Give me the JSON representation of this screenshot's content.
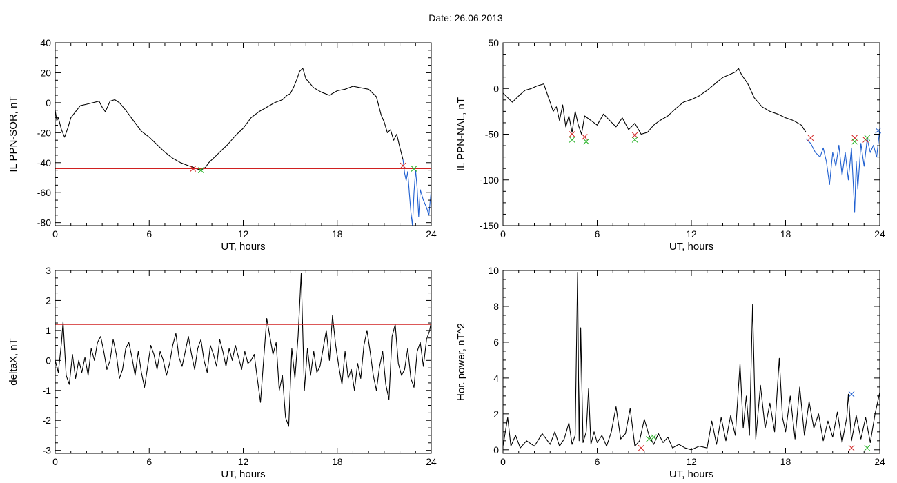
{
  "page": {
    "title": "Date:  26.06.2013"
  },
  "chart_data": [
    {
      "id": "sor",
      "type": "line",
      "xlabel": "UT, hours",
      "ylabel": "IL PPN-SOR, nT",
      "xlim": [
        0,
        24
      ],
      "ylim": [
        -82,
        40
      ],
      "xticks": [
        0,
        6,
        12,
        18,
        24
      ],
      "yticks": [
        -80,
        -60,
        -40,
        -20,
        0,
        20,
        40
      ],
      "threshold": -44,
      "series": [
        {
          "role": "main",
          "color": "#000000",
          "x": [
            0,
            0.1,
            0.2,
            0.4,
            0.6,
            0.8,
            1.0,
            1.3,
            1.6,
            2.0,
            2.4,
            2.8,
            3.0,
            3.2,
            3.5,
            3.8,
            4.1,
            4.5,
            5.0,
            5.5,
            6.0,
            6.5,
            7.0,
            7.5,
            8.0,
            8.5,
            8.8,
            9.0,
            9.3,
            9.6,
            9.8,
            10.2,
            10.6,
            11.0,
            11.5,
            12.0,
            12.5,
            13.0,
            13.5,
            14.0,
            14.5,
            14.8,
            15.0,
            15.2,
            15.4,
            15.6,
            15.8,
            16.0,
            16.5,
            17.0,
            17.5,
            18.0,
            18.5,
            19.0,
            19.5,
            20.0,
            20.5,
            20.8,
            21.0,
            21.2,
            21.4,
            21.6,
            21.8,
            22.0,
            22.2
          ],
          "y": [
            -5,
            -12,
            -10,
            -18,
            -23,
            -17,
            -10,
            -6,
            -2,
            -1,
            0,
            1,
            -3,
            -6,
            1,
            2,
            0,
            -5,
            -12,
            -19,
            -23,
            -28,
            -33,
            -37,
            -40,
            -42,
            -43,
            -44,
            -45,
            -43,
            -40,
            -36,
            -32,
            -28,
            -22,
            -17,
            -10,
            -6,
            -3,
            0,
            2,
            5,
            6,
            10,
            15,
            21,
            23,
            16,
            10,
            7,
            5,
            8,
            9,
            11,
            10,
            9,
            4,
            -8,
            -13,
            -20,
            -18,
            -25,
            -21,
            -30,
            -38
          ]
        },
        {
          "role": "event",
          "color": "#1f5fd0",
          "x": [
            22.2,
            22.3,
            22.4,
            22.5,
            22.6,
            22.7,
            22.8,
            22.9,
            23.0,
            23.1,
            23.2,
            23.3,
            23.5,
            23.7,
            23.85,
            24.0
          ],
          "y": [
            -38,
            -47,
            -52,
            -46,
            -60,
            -73,
            -82,
            -60,
            -45,
            -57,
            -76,
            -58,
            -65,
            -70,
            -75,
            -58
          ]
        }
      ],
      "markers": [
        {
          "x": 8.8,
          "y": -44,
          "color": "#d02020"
        },
        {
          "x": 9.3,
          "y": -45,
          "color": "#20b020"
        },
        {
          "x": 22.2,
          "y": -42,
          "color": "#d02020"
        },
        {
          "x": 22.9,
          "y": -44,
          "color": "#20b020"
        }
      ]
    },
    {
      "id": "nal",
      "type": "line",
      "xlabel": "UT, hours",
      "ylabel": "IL PPN-NAL, nT",
      "xlim": [
        0,
        24
      ],
      "ylim": [
        -150,
        50
      ],
      "xticks": [
        0,
        6,
        12,
        18,
        24
      ],
      "yticks": [
        -150,
        -100,
        -50,
        0,
        50
      ],
      "threshold": -53,
      "series": [
        {
          "role": "main",
          "color": "#000000",
          "x": [
            0,
            0.3,
            0.6,
            1.0,
            1.4,
            1.8,
            2.2,
            2.6,
            2.8,
            3.0,
            3.2,
            3.4,
            3.6,
            3.8,
            4.0,
            4.2,
            4.4,
            4.6,
            4.8,
            5.0,
            5.2,
            5.6,
            6.0,
            6.4,
            6.8,
            7.2,
            7.6,
            8.0,
            8.4,
            8.8,
            9.2,
            9.6,
            10.0,
            10.5,
            11.0,
            11.5,
            12.0,
            12.5,
            13.0,
            13.5,
            14.0,
            14.4,
            14.8,
            15.0,
            15.2,
            15.6,
            16.0,
            16.5,
            17.0,
            17.5,
            18.0,
            18.5,
            19.0,
            19.3
          ],
          "y": [
            -5,
            -10,
            -15,
            -8,
            -2,
            0,
            3,
            5,
            -5,
            -15,
            -25,
            -20,
            -35,
            -18,
            -42,
            -30,
            -48,
            -25,
            -40,
            -50,
            -30,
            -35,
            -40,
            -28,
            -35,
            -42,
            -32,
            -45,
            -38,
            -50,
            -48,
            -40,
            -35,
            -30,
            -22,
            -15,
            -12,
            -8,
            -2,
            5,
            12,
            15,
            18,
            22,
            15,
            5,
            -10,
            -20,
            -25,
            -28,
            -32,
            -35,
            -40,
            -48
          ]
        },
        {
          "role": "event",
          "color": "#1f5fd0",
          "x": [
            19.3,
            19.6,
            19.9,
            20.2,
            20.4,
            20.6,
            20.8,
            21.0,
            21.2,
            21.4,
            21.6,
            21.8,
            22.0,
            22.2,
            22.4,
            22.5,
            22.6,
            22.8,
            23.0,
            23.2,
            23.4,
            23.6,
            23.8,
            24.0
          ],
          "y": [
            -55,
            -60,
            -70,
            -75,
            -65,
            -80,
            -105,
            -70,
            -85,
            -62,
            -95,
            -70,
            -100,
            -65,
            -135,
            -80,
            -110,
            -60,
            -85,
            -55,
            -70,
            -62,
            -75,
            -45
          ]
        }
      ],
      "markers": [
        {
          "x": 4.4,
          "y": -50,
          "color": "#d02020"
        },
        {
          "x": 4.4,
          "y": -56,
          "color": "#20b020"
        },
        {
          "x": 5.2,
          "y": -53,
          "color": "#d02020"
        },
        {
          "x": 5.3,
          "y": -58,
          "color": "#20b020"
        },
        {
          "x": 8.4,
          "y": -51,
          "color": "#d02020"
        },
        {
          "x": 8.4,
          "y": -56,
          "color": "#20b020"
        },
        {
          "x": 19.6,
          "y": -54,
          "color": "#d02020"
        },
        {
          "x": 22.4,
          "y": -54,
          "color": "#d02020"
        },
        {
          "x": 22.4,
          "y": -58,
          "color": "#20b020"
        },
        {
          "x": 23.1,
          "y": -56,
          "color": "#d02020"
        },
        {
          "x": 23.2,
          "y": -54,
          "color": "#20b020"
        },
        {
          "x": 23.9,
          "y": -46,
          "color": "#1f5fd0"
        }
      ]
    },
    {
      "id": "deltax",
      "type": "line",
      "xlabel": "UT, hours",
      "ylabel": "deltaX, nT",
      "xlim": [
        0,
        24
      ],
      "ylim": [
        -3.1,
        3
      ],
      "xticks": [
        0,
        6,
        12,
        18,
        24
      ],
      "yticks": [
        -3,
        -2,
        -1,
        0,
        1,
        2,
        3
      ],
      "threshold": 1.2,
      "series": [
        {
          "role": "main",
          "color": "#000000",
          "x": [
            0,
            0.2,
            0.4,
            0.5,
            0.7,
            0.9,
            1.1,
            1.3,
            1.5,
            1.7,
            1.9,
            2.1,
            2.3,
            2.5,
            2.7,
            2.9,
            3.1,
            3.3,
            3.5,
            3.7,
            3.9,
            4.1,
            4.3,
            4.5,
            4.7,
            4.9,
            5.1,
            5.3,
            5.5,
            5.7,
            5.9,
            6.1,
            6.3,
            6.5,
            6.7,
            6.9,
            7.1,
            7.3,
            7.5,
            7.7,
            7.9,
            8.1,
            8.3,
            8.5,
            8.7,
            8.9,
            9.1,
            9.3,
            9.5,
            9.7,
            9.9,
            10.1,
            10.3,
            10.5,
            10.7,
            10.9,
            11.1,
            11.3,
            11.5,
            11.7,
            11.9,
            12.1,
            12.3,
            12.5,
            12.7,
            12.9,
            13.1,
            13.3,
            13.5,
            13.7,
            13.9,
            14.1,
            14.3,
            14.5,
            14.7,
            14.9,
            15.1,
            15.3,
            15.5,
            15.7,
            15.9,
            16.1,
            16.3,
            16.5,
            16.7,
            16.9,
            17.1,
            17.3,
            17.5,
            17.7,
            17.9,
            18.1,
            18.3,
            18.5,
            18.7,
            18.9,
            19.1,
            19.3,
            19.5,
            19.7,
            19.9,
            20.1,
            20.3,
            20.5,
            20.7,
            20.9,
            21.1,
            21.3,
            21.5,
            21.7,
            21.9,
            22.1,
            22.3,
            22.5,
            22.7,
            22.9,
            23.1,
            23.3,
            23.5,
            23.7,
            23.9,
            24.0
          ],
          "y": [
            0,
            -0.4,
            0.6,
            1.3,
            -0.5,
            -0.8,
            0.2,
            -0.6,
            0.0,
            -0.4,
            0.1,
            -0.5,
            0.4,
            0.0,
            0.6,
            0.8,
            0.3,
            -0.3,
            0.0,
            0.7,
            0.2,
            -0.6,
            -0.3,
            0.4,
            0.6,
            0.1,
            -0.5,
            0.3,
            -0.4,
            -0.9,
            -0.2,
            0.5,
            0.2,
            -0.3,
            0.3,
            0.0,
            -0.5,
            -0.1,
            0.5,
            0.9,
            0.1,
            -0.2,
            0.3,
            0.8,
            0.2,
            -0.3,
            0.4,
            0.7,
            0.0,
            -0.4,
            0.5,
            0.2,
            -0.2,
            0.7,
            0.3,
            -0.2,
            0.4,
            0.0,
            0.5,
            0.1,
            -0.3,
            0.3,
            -0.1,
            0.0,
            0.2,
            -0.6,
            -1.4,
            0.0,
            1.4,
            0.8,
            0.2,
            0.6,
            -1.0,
            -0.5,
            -1.9,
            -2.2,
            0.4,
            -0.6,
            0.8,
            2.9,
            -1.0,
            0.4,
            -0.5,
            0.3,
            -0.4,
            -0.2,
            0.4,
            1.0,
            0.0,
            1.5,
            0.5,
            -0.2,
            -0.8,
            0.3,
            -0.6,
            -0.3,
            -1.0,
            -0.1,
            -0.6,
            0.5,
            1.0,
            0.3,
            -0.5,
            -1.0,
            -0.2,
            0.3,
            -0.8,
            -1.3,
            0.8,
            1.2,
            -0.1,
            -0.5,
            -0.3,
            0.4,
            -0.6,
            -0.9,
            0.3,
            0.6,
            -0.2,
            0.7,
            1.0,
            1.3
          ]
        }
      ],
      "markers": []
    },
    {
      "id": "power",
      "type": "line",
      "xlabel": "UT, hours",
      "ylabel": "Hor. power, nT^2",
      "xlim": [
        0,
        24
      ],
      "ylim": [
        -0.2,
        10
      ],
      "xticks": [
        0,
        6,
        12,
        18,
        24
      ],
      "yticks": [
        0,
        2,
        4,
        6,
        8,
        10
      ],
      "series": [
        {
          "role": "main",
          "color": "#000000",
          "x": [
            0,
            0.3,
            0.5,
            0.8,
            1.1,
            1.5,
            2.0,
            2.5,
            3.0,
            3.3,
            3.6,
            3.9,
            4.2,
            4.4,
            4.6,
            4.75,
            4.85,
            4.95,
            5.1,
            5.3,
            5.45,
            5.6,
            5.8,
            6.0,
            6.3,
            6.6,
            6.9,
            7.2,
            7.5,
            7.8,
            8.1,
            8.4,
            8.7,
            9.0,
            9.3,
            9.6,
            9.9,
            10.2,
            10.5,
            10.8,
            11.2,
            11.6,
            12.0,
            12.5,
            13.0,
            13.3,
            13.6,
            13.9,
            14.2,
            14.5,
            14.8,
            15.1,
            15.3,
            15.5,
            15.7,
            15.9,
            16.1,
            16.4,
            16.7,
            17.0,
            17.3,
            17.6,
            17.8,
            18.0,
            18.3,
            18.6,
            18.9,
            19.2,
            19.5,
            19.8,
            20.1,
            20.4,
            20.7,
            21.0,
            21.3,
            21.6,
            21.9,
            22.0,
            22.2,
            22.5,
            22.8,
            23.1,
            23.4,
            23.7,
            24.0
          ],
          "y": [
            0.2,
            1.8,
            0.2,
            0.8,
            0.1,
            0.5,
            0.2,
            0.9,
            0.3,
            1.0,
            0.2,
            0.6,
            1.5,
            0.3,
            0.8,
            9.9,
            0.5,
            6.8,
            0.4,
            1.0,
            3.4,
            0.3,
            1.0,
            0.4,
            0.8,
            0.2,
            1.0,
            2.4,
            0.6,
            0.9,
            2.3,
            0.2,
            0.5,
            1.7,
            0.8,
            0.3,
            0.9,
            0.4,
            0.7,
            0.1,
            0.3,
            0.1,
            0.0,
            0.2,
            0.1,
            1.6,
            0.3,
            1.8,
            0.5,
            1.9,
            0.8,
            4.8,
            1.2,
            3.0,
            0.8,
            8.1,
            0.6,
            3.6,
            1.2,
            2.6,
            1.0,
            5.1,
            1.8,
            1.0,
            3.0,
            0.6,
            3.5,
            0.8,
            2.7,
            1.2,
            2.0,
            0.5,
            1.6,
            0.7,
            2.1,
            0.4,
            1.8,
            3.1,
            0.5,
            1.9,
            0.6,
            1.8,
            0.4,
            2.0,
            3.2
          ]
        }
      ],
      "markers": [
        {
          "x": 8.8,
          "y": 0.1,
          "color": "#d02020"
        },
        {
          "x": 9.3,
          "y": 0.6,
          "color": "#20b020"
        },
        {
          "x": 9.6,
          "y": 0.7,
          "color": "#20b020"
        },
        {
          "x": 22.2,
          "y": 3.1,
          "color": "#1f5fd0"
        },
        {
          "x": 22.2,
          "y": 0.1,
          "color": "#d02020"
        },
        {
          "x": 23.2,
          "y": 0.1,
          "color": "#20b020"
        }
      ]
    }
  ]
}
